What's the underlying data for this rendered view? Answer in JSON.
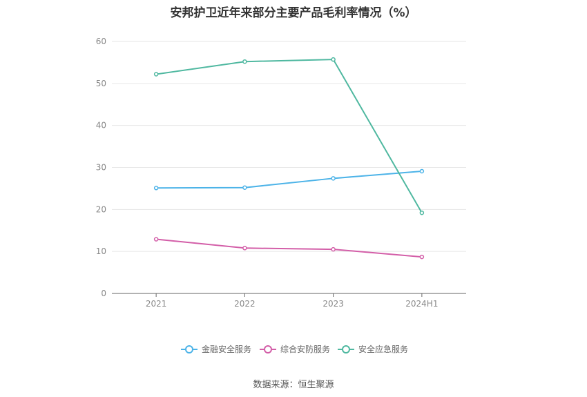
{
  "title": "安邦护卫近年来部分主要产品毛利率情况（%）",
  "source": "数据来源：恒生聚源",
  "chart_data": {
    "type": "line",
    "title": "安邦护卫近年来部分主要产品毛利率情况（%）",
    "categories": [
      "2021",
      "2022",
      "2023",
      "2024H1"
    ],
    "ylim": [
      0,
      60
    ],
    "yticks": [
      0,
      10,
      20,
      30,
      40,
      50,
      60
    ],
    "grid": true,
    "legend_position": "bottom",
    "series": [
      {
        "name": "金融安全服务",
        "color": "#4cb3e8",
        "values": [
          25.1,
          25.2,
          27.4,
          29.1
        ]
      },
      {
        "name": "综合安防服务",
        "color": "#d35ea8",
        "values": [
          12.9,
          10.8,
          10.5,
          8.7
        ]
      },
      {
        "name": "安全应急服务",
        "color": "#4fb8a0",
        "values": [
          52.2,
          55.2,
          55.7,
          19.2
        ]
      }
    ]
  }
}
